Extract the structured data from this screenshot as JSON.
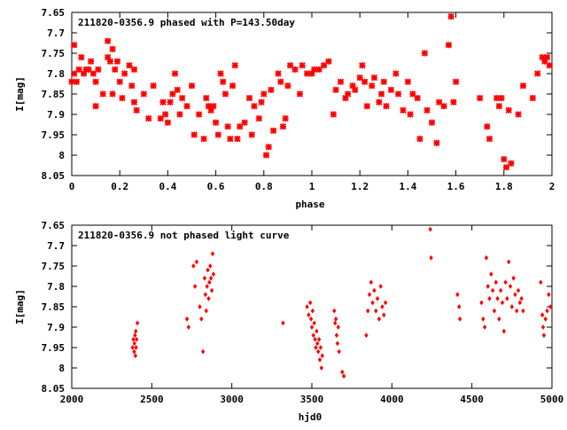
{
  "chart_data": [
    {
      "type": "scatter",
      "title": "211820-0356.9 phased with P=143.50day",
      "xlabel": "phase",
      "ylabel": "I[mag]",
      "xlim": [
        0,
        2
      ],
      "ylim": [
        8.05,
        7.65
      ],
      "y_inverted": true,
      "grid": false,
      "marker_color": "#ff0000",
      "xticks": [
        "0",
        "0.2",
        "0.4",
        "0.6",
        "0.8",
        "1",
        "1.2",
        "1.4",
        "1.6",
        "1.8",
        "2"
      ],
      "yticks": [
        "7.65",
        "7.7",
        "7.75",
        "7.8",
        "7.85",
        "7.9",
        "7.95",
        "8",
        "8.05"
      ],
      "points": [
        [
          0.0,
          7.82
        ],
        [
          0.01,
          7.73
        ],
        [
          0.01,
          7.8
        ],
        [
          0.02,
          7.82
        ],
        [
          0.03,
          7.79
        ],
        [
          0.04,
          7.76
        ],
        [
          0.05,
          7.8
        ],
        [
          0.06,
          7.79
        ],
        [
          0.07,
          7.79
        ],
        [
          0.08,
          7.77
        ],
        [
          0.09,
          7.8
        ],
        [
          0.1,
          7.82
        ],
        [
          0.1,
          7.88
        ],
        [
          0.11,
          7.79
        ],
        [
          0.13,
          7.85
        ],
        [
          0.15,
          7.76
        ],
        [
          0.15,
          7.72
        ],
        [
          0.16,
          7.77
        ],
        [
          0.17,
          7.85
        ],
        [
          0.17,
          7.74
        ],
        [
          0.18,
          7.79
        ],
        [
          0.19,
          7.77
        ],
        [
          0.2,
          7.82
        ],
        [
          0.21,
          7.86
        ],
        [
          0.22,
          7.8
        ],
        [
          0.24,
          7.78
        ],
        [
          0.25,
          7.83
        ],
        [
          0.26,
          7.79
        ],
        [
          0.26,
          7.87
        ],
        [
          0.27,
          7.89
        ],
        [
          0.3,
          7.85
        ],
        [
          0.32,
          7.91
        ],
        [
          0.34,
          7.83
        ],
        [
          0.37,
          7.91
        ],
        [
          0.38,
          7.87
        ],
        [
          0.39,
          7.9
        ],
        [
          0.4,
          7.92
        ],
        [
          0.41,
          7.87
        ],
        [
          0.42,
          7.85
        ],
        [
          0.43,
          7.8
        ],
        [
          0.44,
          7.84
        ],
        [
          0.45,
          7.9
        ],
        [
          0.46,
          7.86
        ],
        [
          0.48,
          7.88
        ],
        [
          0.5,
          7.83
        ],
        [
          0.51,
          7.95
        ],
        [
          0.53,
          7.9
        ],
        [
          0.55,
          7.96
        ],
        [
          0.56,
          7.86
        ],
        [
          0.57,
          7.88
        ],
        [
          0.58,
          7.89
        ],
        [
          0.59,
          7.88
        ],
        [
          0.6,
          7.92
        ],
        [
          0.61,
          7.95
        ],
        [
          0.62,
          7.8
        ],
        [
          0.63,
          7.82
        ],
        [
          0.64,
          7.85
        ],
        [
          0.65,
          7.93
        ],
        [
          0.66,
          7.96
        ],
        [
          0.67,
          7.83
        ],
        [
          0.68,
          7.78
        ],
        [
          0.69,
          7.96
        ],
        [
          0.7,
          7.93
        ],
        [
          0.72,
          7.92
        ],
        [
          0.74,
          7.86
        ],
        [
          0.75,
          7.95
        ],
        [
          0.76,
          7.88
        ],
        [
          0.78,
          7.91
        ],
        [
          0.79,
          7.87
        ],
        [
          0.8,
          7.85
        ],
        [
          0.81,
          8.0
        ],
        [
          0.82,
          7.98
        ],
        [
          0.83,
          7.84
        ],
        [
          0.84,
          7.94
        ],
        [
          0.86,
          7.8
        ],
        [
          0.87,
          7.82
        ],
        [
          0.88,
          7.93
        ],
        [
          0.89,
          7.91
        ],
        [
          0.9,
          7.83
        ],
        [
          0.91,
          7.78
        ],
        [
          0.93,
          7.79
        ],
        [
          0.95,
          7.85
        ],
        [
          0.96,
          7.78
        ],
        [
          0.98,
          7.8
        ],
        [
          1.0,
          7.8
        ],
        [
          1.01,
          7.79
        ],
        [
          1.03,
          7.79
        ],
        [
          1.05,
          7.78
        ],
        [
          1.07,
          7.77
        ],
        [
          1.09,
          7.9
        ],
        [
          1.1,
          7.84
        ],
        [
          1.12,
          7.82
        ],
        [
          1.14,
          7.86
        ],
        [
          1.15,
          7.85
        ],
        [
          1.17,
          7.83
        ],
        [
          1.18,
          7.84
        ],
        [
          1.2,
          7.81
        ],
        [
          1.21,
          7.78
        ],
        [
          1.22,
          7.82
        ],
        [
          1.23,
          7.88
        ],
        [
          1.25,
          7.83
        ],
        [
          1.26,
          7.81
        ],
        [
          1.28,
          7.87
        ],
        [
          1.29,
          7.85
        ],
        [
          1.3,
          7.82
        ],
        [
          1.31,
          7.88
        ],
        [
          1.33,
          7.84
        ],
        [
          1.35,
          7.8
        ],
        [
          1.36,
          7.85
        ],
        [
          1.38,
          7.89
        ],
        [
          1.4,
          7.82
        ],
        [
          1.41,
          7.9
        ],
        [
          1.42,
          7.85
        ],
        [
          1.44,
          7.86
        ],
        [
          1.45,
          7.96
        ],
        [
          1.47,
          7.75
        ],
        [
          1.48,
          7.89
        ],
        [
          1.5,
          7.92
        ],
        [
          1.52,
          7.97
        ],
        [
          1.53,
          7.87
        ],
        [
          1.55,
          7.88
        ],
        [
          1.57,
          7.73
        ],
        [
          1.58,
          7.66
        ],
        [
          1.59,
          7.87
        ],
        [
          1.6,
          7.82
        ],
        [
          1.7,
          7.86
        ],
        [
          1.73,
          7.93
        ],
        [
          1.74,
          7.96
        ],
        [
          1.77,
          7.86
        ],
        [
          1.78,
          7.88
        ],
        [
          1.79,
          7.86
        ],
        [
          1.8,
          8.01
        ],
        [
          1.81,
          8.03
        ],
        [
          1.82,
          7.89
        ],
        [
          1.83,
          8.02
        ],
        [
          1.86,
          7.9
        ],
        [
          1.88,
          7.83
        ],
        [
          1.92,
          7.86
        ],
        [
          1.94,
          7.8
        ],
        [
          1.96,
          7.76
        ],
        [
          1.97,
          7.77
        ],
        [
          1.98,
          7.76
        ],
        [
          1.99,
          7.78
        ]
      ]
    },
    {
      "type": "scatter",
      "title": "211820-0356.9 not phased light curve",
      "xlabel": "hjd0",
      "ylabel": "I[mag]",
      "xlim": [
        2000,
        5000
      ],
      "ylim": [
        8.05,
        7.65
      ],
      "y_inverted": true,
      "grid": false,
      "marker_color": "#ff0000",
      "xticks": [
        "2000",
        "2500",
        "3000",
        "3500",
        "4000",
        "4500",
        "5000"
      ],
      "yticks": [
        "7.65",
        "7.7",
        "7.75",
        "7.8",
        "7.85",
        "7.9",
        "7.95",
        "8",
        "8.05"
      ],
      "points": [
        [
          2380,
          7.95
        ],
        [
          2385,
          7.93
        ],
        [
          2390,
          7.96
        ],
        [
          2392,
          7.94
        ],
        [
          2395,
          7.92
        ],
        [
          2398,
          7.97
        ],
        [
          2400,
          7.91
        ],
        [
          2402,
          7.95
        ],
        [
          2405,
          7.93
        ],
        [
          2410,
          7.89
        ],
        [
          2720,
          7.88
        ],
        [
          2730,
          7.9
        ],
        [
          2760,
          7.75
        ],
        [
          2770,
          7.8
        ],
        [
          2780,
          7.74
        ],
        [
          2800,
          7.85
        ],
        [
          2810,
          7.88
        ],
        [
          2820,
          7.96
        ],
        [
          2830,
          7.78
        ],
        [
          2835,
          7.82
        ],
        [
          2840,
          7.86
        ],
        [
          2845,
          7.8
        ],
        [
          2850,
          7.76
        ],
        [
          2855,
          7.83
        ],
        [
          2860,
          7.79
        ],
        [
          2865,
          7.75
        ],
        [
          2870,
          7.78
        ],
        [
          2875,
          7.81
        ],
        [
          2880,
          7.72
        ],
        [
          2885,
          7.77
        ],
        [
          3320,
          7.89
        ],
        [
          3470,
          7.85
        ],
        [
          3480,
          7.87
        ],
        [
          3490,
          7.84
        ],
        [
          3495,
          7.88
        ],
        [
          3500,
          7.9
        ],
        [
          3505,
          7.86
        ],
        [
          3510,
          7.92
        ],
        [
          3515,
          7.89
        ],
        [
          3520,
          7.93
        ],
        [
          3525,
          7.95
        ],
        [
          3530,
          7.91
        ],
        [
          3535,
          7.94
        ],
        [
          3540,
          7.96
        ],
        [
          3545,
          7.93
        ],
        [
          3550,
          7.98
        ],
        [
          3555,
          7.95
        ],
        [
          3560,
          8.0
        ],
        [
          3565,
          7.97
        ],
        [
          3640,
          7.86
        ],
        [
          3645,
          7.89
        ],
        [
          3650,
          7.88
        ],
        [
          3655,
          7.92
        ],
        [
          3660,
          7.94
        ],
        [
          3665,
          7.9
        ],
        [
          3670,
          7.96
        ],
        [
          3690,
          8.01
        ],
        [
          3700,
          8.02
        ],
        [
          3840,
          7.92
        ],
        [
          3850,
          7.86
        ],
        [
          3860,
          7.82
        ],
        [
          3870,
          7.79
        ],
        [
          3880,
          7.84
        ],
        [
          3890,
          7.81
        ],
        [
          3900,
          7.86
        ],
        [
          3910,
          7.83
        ],
        [
          3920,
          7.88
        ],
        [
          3930,
          7.8
        ],
        [
          3940,
          7.85
        ],
        [
          3950,
          7.87
        ],
        [
          3960,
          7.84
        ],
        [
          4240,
          7.66
        ],
        [
          4245,
          7.73
        ],
        [
          4410,
          7.82
        ],
        [
          4420,
          7.85
        ],
        [
          4425,
          7.88
        ],
        [
          4560,
          7.84
        ],
        [
          4570,
          7.88
        ],
        [
          4580,
          7.9
        ],
        [
          4590,
          7.73
        ],
        [
          4600,
          7.8
        ],
        [
          4610,
          7.83
        ],
        [
          4620,
          7.77
        ],
        [
          4630,
          7.81
        ],
        [
          4640,
          7.86
        ],
        [
          4650,
          7.79
        ],
        [
          4660,
          7.83
        ],
        [
          4670,
          7.88
        ],
        [
          4680,
          7.81
        ],
        [
          4690,
          7.84
        ],
        [
          4700,
          7.91
        ],
        [
          4710,
          7.79
        ],
        [
          4720,
          7.83
        ],
        [
          4730,
          7.74
        ],
        [
          4740,
          7.8
        ],
        [
          4750,
          7.85
        ],
        [
          4760,
          7.78
        ],
        [
          4770,
          7.82
        ],
        [
          4780,
          7.86
        ],
        [
          4790,
          7.81
        ],
        [
          4800,
          7.84
        ],
        [
          4810,
          7.83
        ],
        [
          4820,
          7.86
        ],
        [
          4930,
          7.79
        ],
        [
          4940,
          7.87
        ],
        [
          4945,
          7.9
        ],
        [
          4950,
          7.92
        ],
        [
          4960,
          7.88
        ],
        [
          4970,
          7.86
        ],
        [
          4980,
          7.82
        ],
        [
          4990,
          7.85
        ]
      ]
    }
  ]
}
